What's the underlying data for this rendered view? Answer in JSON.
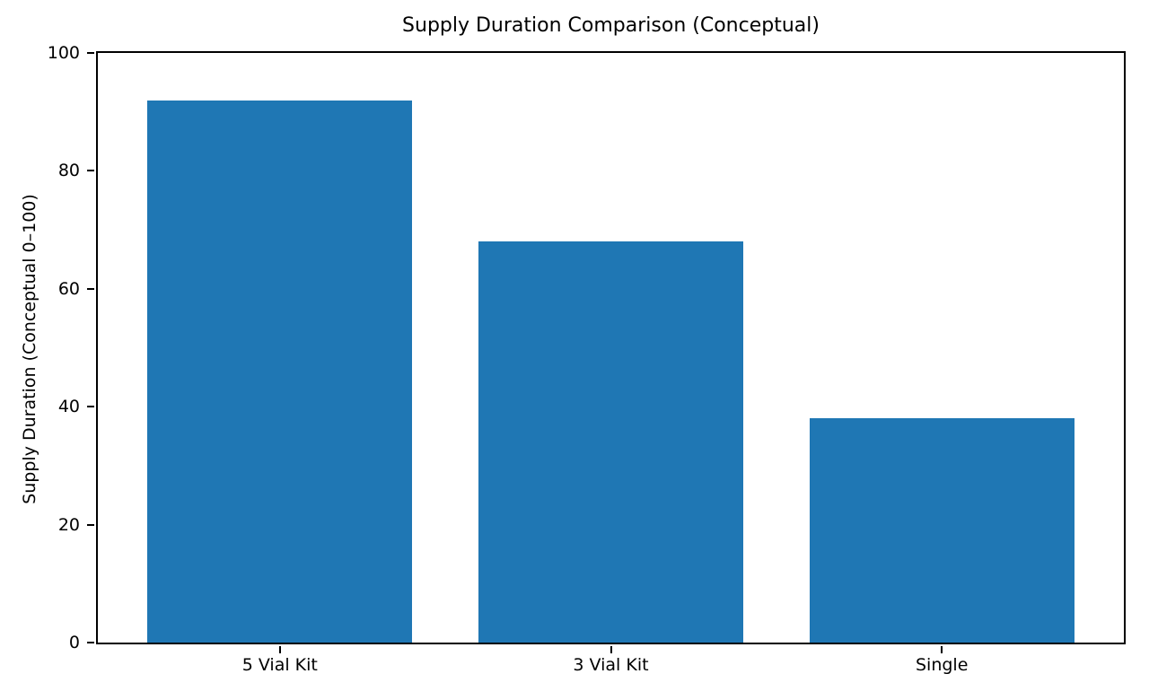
{
  "figure": {
    "background": "#ffffff",
    "text_color": "#000000"
  },
  "chart_data": {
    "type": "bar",
    "title": "Supply Duration Comparison (Conceptual)",
    "xlabel": "",
    "ylabel": "Supply Duration (Conceptual 0–100)",
    "categories": [
      "5 Vial Kit",
      "3 Vial Kit",
      "Single"
    ],
    "values": [
      92,
      68,
      38
    ],
    "ylim": [
      0,
      100
    ],
    "yticks": [
      0,
      20,
      40,
      60,
      80,
      100
    ],
    "x_range": [
      -0.55,
      2.55
    ],
    "bar_width_fraction": 0.8,
    "bar_color": "#1f77b4",
    "grid": false
  }
}
